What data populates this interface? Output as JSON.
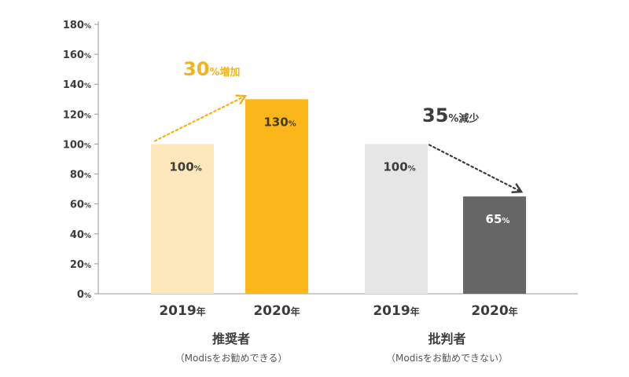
{
  "chart_data": {
    "type": "bar",
    "ylim": [
      0,
      180
    ],
    "yticks": [
      0,
      20,
      40,
      60,
      80,
      100,
      120,
      140,
      160,
      180
    ],
    "tick_unit": "%",
    "bar_unit": "%",
    "year_unit": "年",
    "grid": false,
    "groups": [
      {
        "label": "推奨者",
        "sublabel": "（Modisをお勧めできる）",
        "bars": [
          {
            "category": "2019",
            "value": 100,
            "color": "#fde8bb",
            "label_color": "#3c3c3c"
          },
          {
            "category": "2020",
            "value": 130,
            "color": "#fbb71a",
            "label_color": "#3c3c3c"
          }
        ],
        "annotation": {
          "value": "30",
          "suffix": "%増加",
          "color": "#f5b21b"
        }
      },
      {
        "label": "批判者",
        "sublabel": "（Modisをお勧めできない）",
        "bars": [
          {
            "category": "2019",
            "value": 100,
            "color": "#e6e6e6",
            "label_color": "#3c3c3c"
          },
          {
            "category": "2020",
            "value": 65,
            "color": "#666666",
            "label_color": "#ffffff"
          }
        ],
        "annotation": {
          "value": "35",
          "suffix": "%減少",
          "color": "#3c3c3c"
        }
      }
    ],
    "axis_color": "#9a9a9a"
  }
}
